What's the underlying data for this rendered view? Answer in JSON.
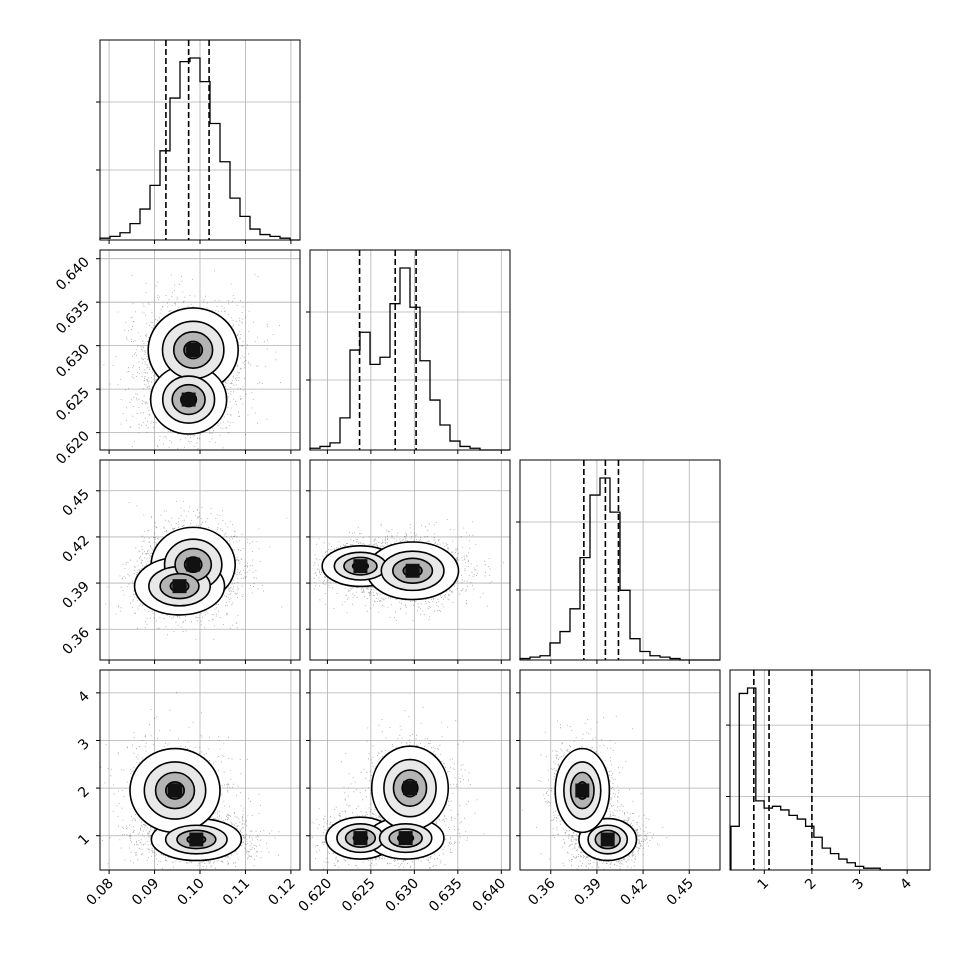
{
  "colors": {
    "background": "#ffffff",
    "grid": "#b0b0b0",
    "line": "#000000",
    "quantile": "#000000",
    "points": "#000000"
  },
  "chart_data": {
    "type": "corner",
    "title": "",
    "grid": true,
    "quantile_line_style": "dashed",
    "variables": [
      {
        "ticks": [
          "0.08",
          "0.09",
          "0.10",
          "0.11",
          "0.12"
        ],
        "range": [
          0.078,
          0.122
        ],
        "quantiles": [
          0.0925,
          0.0975,
          0.102
        ],
        "hist_peak": 0.0982
      },
      {
        "ticks": [
          "0.620",
          "0.625",
          "0.630",
          "0.635",
          "0.640"
        ],
        "range": [
          0.618,
          0.641
        ],
        "quantiles": [
          0.6237,
          0.6278,
          0.6302
        ],
        "hist_peak": 0.6299
      },
      {
        "ticks": [
          "0.36",
          "0.39",
          "0.42",
          "0.45"
        ],
        "range": [
          0.34,
          0.47
        ],
        "quantiles": [
          0.3815,
          0.3955,
          0.404
        ],
        "hist_peak": 0.3955
      },
      {
        "ticks": [
          "1",
          "2",
          "3",
          "4"
        ],
        "range": [
          0.28,
          4.48
        ],
        "quantiles": [
          0.78,
          1.1,
          2.0
        ],
        "hist_peak": 0.85
      }
    ],
    "histograms": [
      {
        "variable": 0,
        "bins": 20,
        "values": [
          1,
          2,
          4,
          9,
          17,
          30,
          49,
          78,
          98,
          100,
          87,
          64,
          43,
          23,
          13,
          6,
          3,
          2,
          1,
          0
        ]
      },
      {
        "variable": 1,
        "bins": 20,
        "values": [
          1,
          2,
          4,
          18,
          56,
          66,
          48,
          52,
          82,
          102,
          80,
          50,
          28,
          14,
          5,
          2,
          1,
          0,
          0,
          0
        ]
      },
      {
        "variable": 2,
        "bins": 20,
        "values": [
          1,
          2,
          3,
          12,
          20,
          36,
          72,
          116,
          128,
          104,
          49,
          15,
          6,
          3,
          2,
          1,
          0,
          0,
          0,
          0
        ]
      },
      {
        "variable": 3,
        "bins": 24,
        "values": [
          24,
          97,
          100,
          38,
          34,
          35,
          33,
          30,
          28,
          24,
          18,
          12,
          9,
          6,
          4,
          2,
          1,
          1,
          0,
          0,
          0,
          0,
          0,
          0
        ]
      }
    ],
    "pairs": [
      {
        "x": 0,
        "y": 1,
        "modes": [
          {
            "x": 0.0985,
            "y": 0.6295,
            "sx": 0.0045,
            "sy": 0.0022,
            "w": 0.55
          },
          {
            "x": 0.0975,
            "y": 0.6238,
            "sx": 0.0038,
            "sy": 0.0018,
            "w": 0.45
          }
        ]
      },
      {
        "x": 0,
        "y": 2,
        "modes": [
          {
            "x": 0.0985,
            "y": 0.402,
            "sx": 0.0042,
            "sy": 0.011,
            "w": 0.65
          },
          {
            "x": 0.0955,
            "y": 0.388,
            "sx": 0.0045,
            "sy": 0.0085,
            "w": 0.35
          }
        ]
      },
      {
        "x": 1,
        "y": 2,
        "modes": [
          {
            "x": 0.6238,
            "y": 0.401,
            "sx": 0.002,
            "sy": 0.006,
            "w": 0.45
          },
          {
            "x": 0.6298,
            "y": 0.398,
            "sx": 0.0024,
            "sy": 0.0085,
            "w": 0.55
          }
        ]
      },
      {
        "x": 0,
        "y": 3,
        "modes": [
          {
            "x": 0.0992,
            "y": 0.92,
            "sx": 0.0045,
            "sy": 0.2,
            "w": 0.62
          },
          {
            "x": 0.0945,
            "y": 1.95,
            "sx": 0.0045,
            "sy": 0.4,
            "w": 0.38
          }
        ]
      },
      {
        "x": 1,
        "y": 3,
        "modes": [
          {
            "x": 0.6238,
            "y": 0.95,
            "sx": 0.0018,
            "sy": 0.2,
            "w": 0.3
          },
          {
            "x": 0.629,
            "y": 0.95,
            "sx": 0.002,
            "sy": 0.2,
            "w": 0.3
          },
          {
            "x": 0.6295,
            "y": 2.0,
            "sx": 0.002,
            "sy": 0.4,
            "w": 0.4
          }
        ]
      },
      {
        "x": 2,
        "y": 3,
        "modes": [
          {
            "x": 0.397,
            "y": 0.92,
            "sx": 0.0085,
            "sy": 0.2,
            "w": 0.6
          },
          {
            "x": 0.3805,
            "y": 1.95,
            "sx": 0.008,
            "sy": 0.4,
            "w": 0.4
          }
        ]
      }
    ]
  }
}
